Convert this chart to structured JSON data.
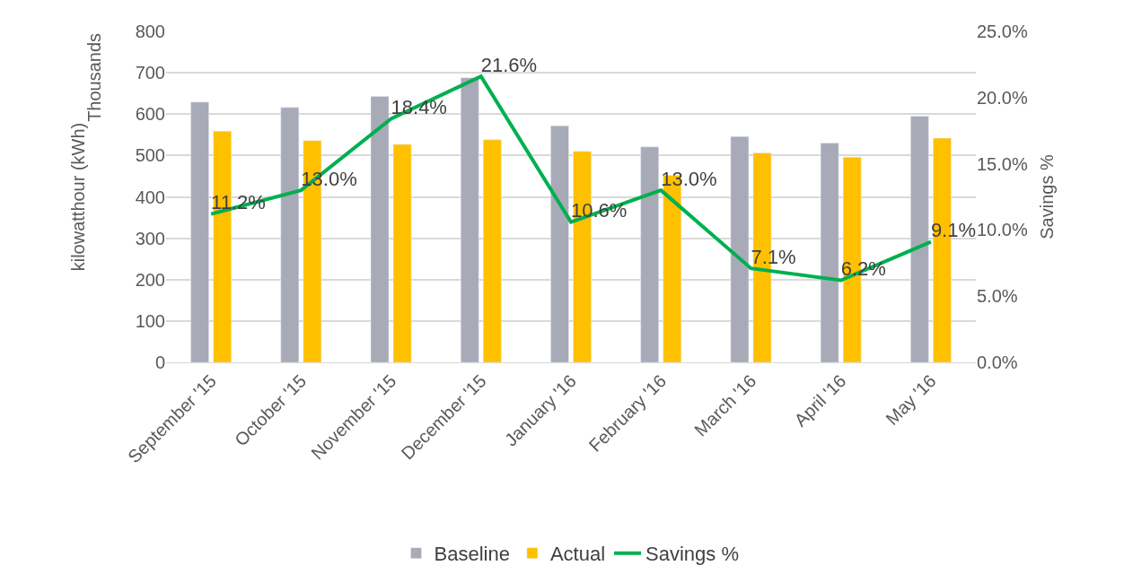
{
  "chart_data": {
    "type": "bar",
    "categories": [
      "September '15",
      "October '15",
      "November '15",
      "December '15",
      "January '16",
      "February '16",
      "March '16",
      "April '16",
      "May '16"
    ],
    "series": [
      {
        "name": "Baseline",
        "color": "#a9aab7",
        "values": [
          629,
          616,
          643,
          688,
          572,
          521,
          546,
          530,
          595
        ]
      },
      {
        "name": "Actual",
        "color": "#ffc000",
        "values": [
          559,
          536,
          527,
          538,
          510,
          452,
          506,
          496,
          542
        ]
      },
      {
        "name": "Savings %",
        "type": "line",
        "axis": "y2",
        "color": "#00b050",
        "values": [
          11.2,
          13.0,
          18.4,
          21.6,
          10.6,
          13.0,
          7.1,
          6.2,
          9.1
        ],
        "value_labels": [
          "11.2%",
          "13.0%",
          "18.4%",
          "21.6%",
          "10.6%",
          "13.0%",
          "7.1%",
          "6.2%",
          "9.1%"
        ]
      }
    ],
    "ylabel": "kilowatthour (kWh)",
    "y2label": "Savings %",
    "annotations": [
      "Thousands"
    ],
    "ylim": [
      0,
      800
    ],
    "yticks": [
      0,
      100,
      200,
      300,
      400,
      500,
      600,
      700,
      800
    ],
    "y2lim": [
      0,
      25
    ],
    "y2ticks": [
      {
        "value": 0,
        "label": "0.0%"
      },
      {
        "value": 5,
        "label": "5.0%"
      },
      {
        "value": 10,
        "label": "10.0%"
      },
      {
        "value": 15,
        "label": "15.0%"
      },
      {
        "value": 20,
        "label": "20.0%"
      },
      {
        "value": 25,
        "label": "25.0%"
      }
    ],
    "grid": "y",
    "legend": "bottom",
    "marker": "none",
    "line_style": "solid"
  }
}
